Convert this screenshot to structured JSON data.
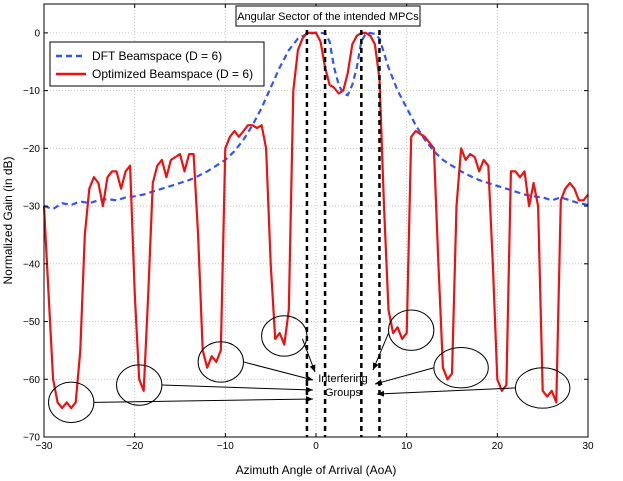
{
  "chart_data": {
    "type": "line",
    "title": "",
    "xlabel": "Azimuth Angle of Arrival (AoA)",
    "ylabel": "Normalized Gain (in dB)",
    "xlim": [
      -30,
      30
    ],
    "ylim": [
      -70,
      5
    ],
    "xticks": [
      -30,
      -20,
      -10,
      0,
      10,
      20,
      30
    ],
    "yticks": [
      0,
      -10,
      -20,
      -30,
      -40,
      -50,
      -60,
      -70
    ],
    "grid": true,
    "legend": {
      "location": "top-left"
    },
    "series": [
      {
        "name": "DFT Beamspace (D = 6)",
        "style": "dashed",
        "color": "#3355ee",
        "x": [
          -30,
          -29,
          -28,
          -27,
          -26,
          -25,
          -24,
          -23,
          -22,
          -21,
          -20,
          -19,
          -18,
          -17,
          -16,
          -15,
          -14,
          -13,
          -12,
          -11,
          -10,
          -9,
          -8,
          -7,
          -6,
          -5,
          -4,
          -3,
          -2,
          -1,
          -0.5,
          0,
          0.5,
          1,
          1.5,
          2,
          2.5,
          3,
          3.5,
          4,
          4.5,
          5,
          5.5,
          6,
          6.5,
          7,
          8,
          9,
          10,
          11,
          12,
          13,
          14,
          15,
          16,
          17,
          18,
          19,
          20,
          21,
          22,
          23,
          24,
          25,
          26,
          27,
          28,
          29,
          30
        ],
        "values": [
          -30,
          -30.5,
          -29.5,
          -29.8,
          -29.2,
          -29.5,
          -29.0,
          -28.8,
          -29.0,
          -28.5,
          -28.3,
          -28.0,
          -27.5,
          -27.0,
          -26.5,
          -26.0,
          -25.5,
          -24.8,
          -24.0,
          -23.0,
          -22.0,
          -20.5,
          -18.5,
          -16.0,
          -13.0,
          -9.5,
          -6.0,
          -3.0,
          -1.0,
          -0.2,
          -0.1,
          0,
          0,
          -0.1,
          -1.5,
          -6.0,
          -9.0,
          -10.5,
          -10.8,
          -9.0,
          -6.0,
          -1.5,
          -0.1,
          0,
          -0.2,
          -1.0,
          -6.0,
          -10.0,
          -13.0,
          -16.0,
          -18.5,
          -20.5,
          -22.0,
          -23.0,
          -24.0,
          -24.8,
          -25.5,
          -26.0,
          -26.5,
          -27.0,
          -27.5,
          -28.0,
          -28.3,
          -28.5,
          -29.0,
          -28.5,
          -29.0,
          -29.5,
          -29.8
        ]
      },
      {
        "name": "Optimized Beamspace (D = 6)",
        "style": "solid",
        "color": "#ee1111",
        "x": [
          -30,
          -29.5,
          -29,
          -28.5,
          -28,
          -27.5,
          -27,
          -26.5,
          -26,
          -25.5,
          -25,
          -24.5,
          -24,
          -23.5,
          -23,
          -22.5,
          -22,
          -21.5,
          -21,
          -20.5,
          -20,
          -19.5,
          -19,
          -18.5,
          -18,
          -17.5,
          -17,
          -16.5,
          -16,
          -15.5,
          -15,
          -14.5,
          -14,
          -13.5,
          -13,
          -12.5,
          -12,
          -11.5,
          -11,
          -10.5,
          -10,
          -9.5,
          -9,
          -8.5,
          -8,
          -7.5,
          -7,
          -6.5,
          -6,
          -5.5,
          -5,
          -4.5,
          -4,
          -3.5,
          -3,
          -2.5,
          -2,
          -1.5,
          -1,
          -0.5,
          0,
          0.5,
          1,
          1.5,
          2,
          2.5,
          3,
          3.5,
          4,
          4.5,
          5,
          5.5,
          6,
          6.5,
          7,
          7.5,
          8,
          8.5,
          9,
          9.5,
          10,
          10.5,
          11,
          11.5,
          12,
          12.5,
          13,
          13.5,
          14,
          14.5,
          15,
          15.5,
          16,
          16.5,
          17,
          17.5,
          18,
          18.5,
          19,
          19.5,
          20,
          20.5,
          21,
          21.5,
          22,
          22.5,
          23,
          23.5,
          24,
          24.5,
          25,
          25.5,
          26,
          26.5,
          27,
          27.5,
          28,
          28.5,
          29,
          29.5,
          30
        ],
        "values": [
          -30,
          -45,
          -60,
          -64,
          -65,
          -64,
          -65,
          -64,
          -55,
          -35,
          -27,
          -25,
          -26,
          -30,
          -25,
          -24,
          -24,
          -27,
          -24,
          -23,
          -45,
          -60,
          -62,
          -45,
          -26,
          -23,
          -22,
          -25,
          -22,
          -21.5,
          -21,
          -24,
          -21,
          -21,
          -35,
          -55,
          -58,
          -56,
          -57,
          -55,
          -20,
          -18,
          -17,
          -18,
          -17,
          -16,
          -16,
          -16.5,
          -16,
          -20,
          -40,
          -53,
          -52,
          -54,
          -48,
          -10,
          -3,
          -1,
          0,
          0,
          0,
          -1.5,
          -6,
          -9,
          -9.5,
          -10.5,
          -10,
          -7,
          -2,
          -0.5,
          0,
          0,
          -0.5,
          -2,
          -8,
          -30,
          -48,
          -52,
          -51,
          -53,
          -52,
          -18,
          -17,
          -17.5,
          -18,
          -19,
          -20,
          -40,
          -58,
          -60,
          -59,
          -30,
          -20,
          -22,
          -21,
          -21.5,
          -24,
          -22,
          -23,
          -40,
          -60,
          -62,
          -61,
          -24,
          -24,
          -25,
          -24,
          -30,
          -26,
          -30,
          -62,
          -63,
          -62,
          -64,
          -29,
          -27,
          -26,
          -27,
          -29,
          -29,
          -28
        ]
      }
    ],
    "annotations": {
      "sector_box": "Angular Sector of the intended MPCs",
      "interfering_label_line1": "Interfering",
      "interfering_label_line2": "Groups"
    }
  }
}
